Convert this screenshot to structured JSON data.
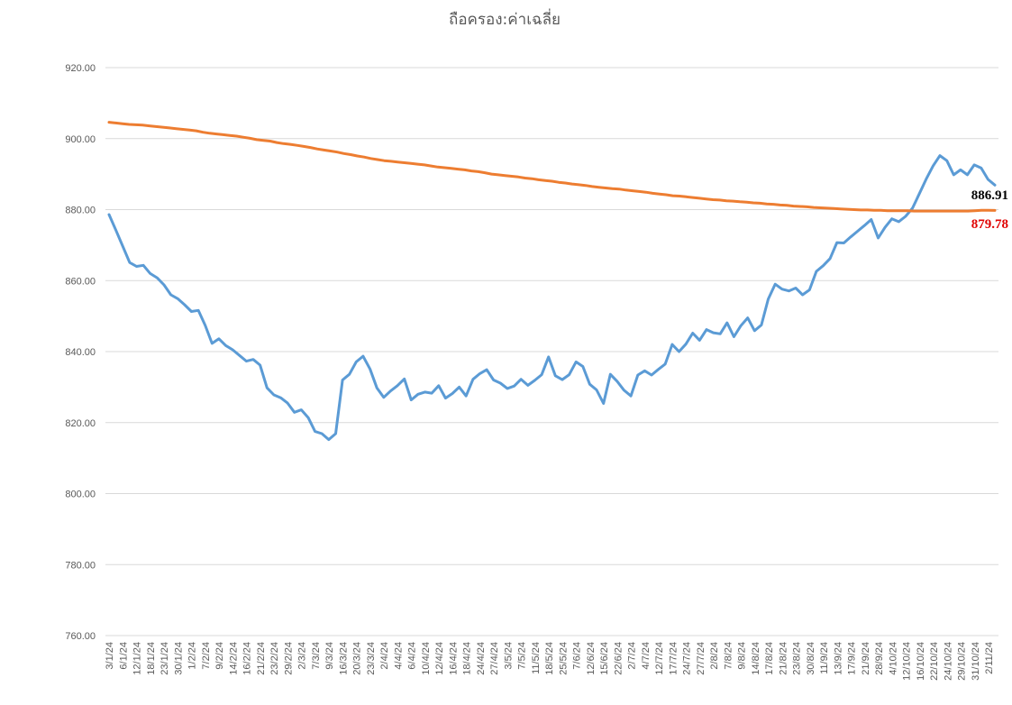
{
  "chart_data": {
    "type": "line",
    "title": "ถือครอง:ค่าเฉลี่ย",
    "xlabel": "",
    "ylabel": "",
    "ylim": [
      760,
      920
    ],
    "yticks": [
      "760.00",
      "780.00",
      "800.00",
      "820.00",
      "840.00",
      "860.00",
      "880.00",
      "900.00",
      "920.00"
    ],
    "grid": true,
    "legend": "none",
    "x_tick_labels": [
      "3/1/24",
      "6/1/24",
      "12/1/24",
      "18/1/24",
      "23/1/24",
      "30/1/24",
      "1/2/24",
      "7/2/24",
      "9/2/24",
      "14/2/24",
      "16/2/24",
      "21/2/24",
      "23/2/24",
      "29/2/24",
      "2/3/24",
      "7/3/24",
      "9/3/24",
      "16/3/24",
      "20/3/24",
      "23/3/24",
      "2/4/24",
      "4/4/24",
      "6/4/24",
      "10/4/24",
      "12/4/24",
      "16/4/24",
      "18/4/24",
      "24/4/24",
      "27/4/24",
      "3/5/24",
      "7/5/24",
      "11/5/24",
      "18/5/24",
      "25/5/24",
      "7/6/24",
      "12/6/24",
      "15/6/24",
      "22/6/24",
      "2/7/24",
      "4/7/24",
      "12/7/24",
      "17/7/24",
      "24/7/24",
      "27/7/24",
      "2/8/24",
      "7/8/24",
      "9/8/24",
      "14/8/24",
      "17/8/24",
      "21/8/24",
      "23/8/24",
      "30/8/24",
      "11/9/24",
      "13/9/24",
      "17/9/24",
      "21/9/24",
      "28/9/24",
      "4/10/24",
      "12/10/24",
      "16/10/24",
      "22/10/24",
      "24/10/24",
      "29/10/24",
      "31/10/24",
      "2/11/24"
    ],
    "series": [
      {
        "color": "#5b9bd5",
        "end_label": "886.91",
        "end_label_color": "#000000",
        "values": [
          878.6,
          874.2,
          869.7,
          865.1,
          864.0,
          864.3,
          862.0,
          860.8,
          858.8,
          856.0,
          854.9,
          853.2,
          851.3,
          851.6,
          847.4,
          842.3,
          843.6,
          841.7,
          840.5,
          838.9,
          837.3,
          837.8,
          836.2,
          829.8,
          827.8,
          827.0,
          825.5,
          822.9,
          823.6,
          821.4,
          817.5,
          816.9,
          815.2,
          816.9,
          832.0,
          833.6,
          837.1,
          838.7,
          835.1,
          829.8,
          827.1,
          828.9,
          830.4,
          832.3,
          826.4,
          828.0,
          828.6,
          828.3,
          830.4,
          826.9,
          828.2,
          830.0,
          827.5,
          832.2,
          833.8,
          834.9,
          832.0,
          831.1,
          829.6,
          830.3,
          832.2,
          830.5,
          831.9,
          833.5,
          838.5,
          833.2,
          832.1,
          833.5,
          837.1,
          835.8,
          830.8,
          829.2,
          825.4,
          833.6,
          831.6,
          829.1,
          827.5,
          833.4,
          834.6,
          833.4,
          835.0,
          836.5,
          842.0,
          840.0,
          842.1,
          845.2,
          843.2,
          846.2,
          845.3,
          845.0,
          848.1,
          844.2,
          847.3,
          849.5,
          845.9,
          847.5,
          854.8,
          859.0,
          857.6,
          857.1,
          857.9,
          856.0,
          857.4,
          862.6,
          864.2,
          866.2,
          870.7,
          870.6,
          872.3,
          873.9,
          875.5,
          877.2,
          872.0,
          875.0,
          877.4,
          876.6,
          878.1,
          880.4,
          884.5,
          888.6,
          892.3,
          895.2,
          893.8,
          889.8,
          891.2,
          889.8,
          892.6,
          891.7,
          888.5,
          886.91
        ]
      },
      {
        "color": "#ed7d31",
        "end_label": "879.78",
        "end_label_color": "#e00000",
        "values": [
          904.6,
          904.4,
          904.2,
          904.0,
          903.9,
          903.8,
          903.6,
          903.4,
          903.2,
          903.0,
          902.8,
          902.6,
          902.4,
          902.2,
          901.8,
          901.5,
          901.3,
          901.1,
          900.9,
          900.7,
          900.4,
          900.1,
          899.7,
          899.5,
          899.3,
          898.9,
          898.6,
          898.4,
          898.1,
          897.8,
          897.5,
          897.1,
          896.8,
          896.5,
          896.2,
          895.8,
          895.5,
          895.1,
          894.8,
          894.4,
          894.1,
          893.8,
          893.6,
          893.4,
          893.2,
          893.0,
          892.8,
          892.6,
          892.3,
          892.0,
          891.8,
          891.6,
          891.4,
          891.2,
          890.9,
          890.7,
          890.4,
          890.0,
          889.8,
          889.6,
          889.4,
          889.2,
          888.9,
          888.7,
          888.4,
          888.2,
          888.0,
          887.7,
          887.5,
          887.2,
          887.0,
          886.8,
          886.5,
          886.3,
          886.1,
          885.9,
          885.8,
          885.5,
          885.3,
          885.1,
          884.9,
          884.6,
          884.4,
          884.2,
          883.9,
          883.8,
          883.6,
          883.4,
          883.2,
          883.0,
          882.8,
          882.7,
          882.5,
          882.4,
          882.2,
          882.1,
          881.9,
          881.8,
          881.6,
          881.5,
          881.3,
          881.2,
          881.0,
          880.9,
          880.8,
          880.6,
          880.5,
          880.4,
          880.3,
          880.2,
          880.1,
          880.0,
          879.9,
          879.9,
          879.8,
          879.8,
          879.7,
          879.7,
          879.7,
          879.7,
          879.6,
          879.6,
          879.6,
          879.6,
          879.6,
          879.6,
          879.6,
          879.6,
          879.6,
          879.7,
          879.8,
          879.8,
          879.78
        ]
      }
    ]
  }
}
